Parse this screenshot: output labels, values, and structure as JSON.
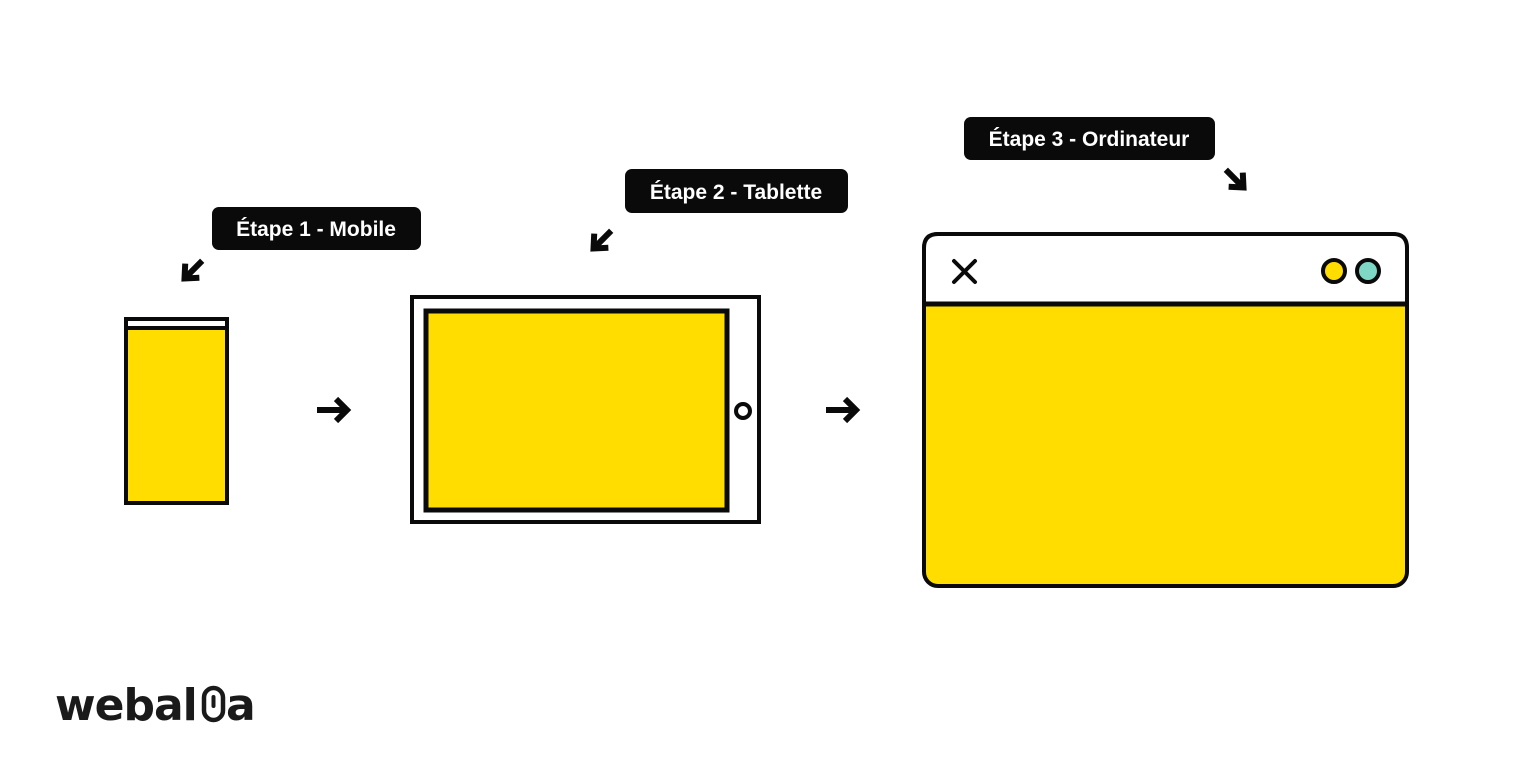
{
  "colors": {
    "yellow": "#FFDD00",
    "stroke": "#0a0a0a",
    "teal": "#7FD8C6",
    "label_bg": "#0a0a0a",
    "label_text": "#ffffff",
    "logo": "#1a1a1a"
  },
  "steps": [
    {
      "label": "Étape 1 - Mobile",
      "device": "mobile"
    },
    {
      "label": "Étape 2 - Tablette",
      "device": "tablet"
    },
    {
      "label": "Étape 3 - Ordinateur",
      "device": "desktop"
    }
  ],
  "icons": {
    "close": "close-icon",
    "flow_arrow": "arrow-right-icon",
    "pointer_arrow": "pointer-arrow-icon"
  },
  "logo": {
    "text_start": "webal",
    "text_end": "a"
  }
}
